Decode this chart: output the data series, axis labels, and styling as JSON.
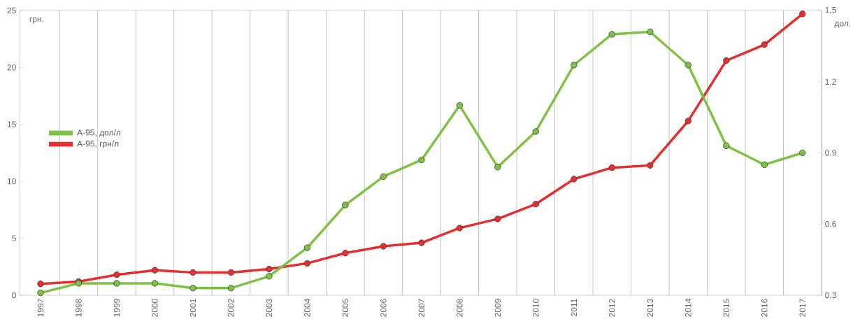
{
  "chart_data": {
    "type": "line",
    "ylabel": "грн.",
    "y2label": "дол.",
    "categories": [
      "1997",
      "1998",
      "1999",
      "2000",
      "2001",
      "2002",
      "2003",
      "2004",
      "2005",
      "2006",
      "2007",
      "2008",
      "2009",
      "2010",
      "2011",
      "2012",
      "2013",
      "2014",
      "2015",
      "2016",
      "2017"
    ],
    "series": [
      {
        "name": "А-95, дол/л",
        "color": "#7dc242",
        "axis": "y2",
        "values": [
          0.31,
          0.35,
          0.35,
          0.35,
          0.33,
          0.33,
          0.38,
          0.5,
          0.68,
          0.8,
          0.87,
          1.1,
          0.84,
          0.99,
          1.27,
          1.4,
          1.41,
          1.27,
          0.93,
          0.85,
          0.9
        ]
      },
      {
        "name": "А-95, грн/л",
        "color": "#e52f2f",
        "values": [
          1.0,
          1.2,
          1.8,
          2.2,
          2.0,
          2.0,
          2.3,
          2.8,
          3.7,
          4.3,
          4.6,
          5.9,
          6.7,
          8.0,
          10.2,
          11.2,
          11.4,
          15.3,
          20.6,
          22.0,
          24.7
        ]
      }
    ],
    "ylim": [
      0,
      25
    ],
    "yticks": [
      0,
      5,
      10,
      15,
      20,
      25
    ],
    "y2lim": [
      0.3,
      1.5
    ],
    "y2ticks": [
      0.3,
      0.6,
      0.9,
      1.2,
      {
        "value": 1.5,
        "label": "1,5"
      }
    ],
    "grid": "x",
    "legend": "left",
    "marker": "circle",
    "line_style": "solid"
  }
}
